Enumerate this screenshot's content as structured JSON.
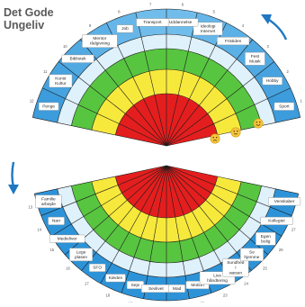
{
  "title": {
    "line1": "Det Gode",
    "line2": "Ungeliv"
  },
  "colors": {
    "ring_red": "#e41e1e",
    "ring_yellow": "#f7e93c",
    "ring_green": "#58c540",
    "ring_light_blue": "#dff1fb",
    "band_blue": "#2d93d8",
    "band_light": "#8ed0f4",
    "arrow": "#1f78c1",
    "label_box": "#ffffff",
    "text_dark": "#2a2a2a"
  },
  "upper_wheel": {
    "segments": [
      {
        "label": "Penge",
        "number": "12"
      },
      {
        "label": "Kunst Kultur",
        "number": "11"
      },
      {
        "label": "Bibliotek",
        "number": "10"
      },
      {
        "label": "Mentor rådgivning",
        "number": "9"
      },
      {
        "label": "Job",
        "number": "8"
      },
      {
        "label": "Transport",
        "number": "7"
      },
      {
        "label": "Uddannelse",
        "number": "6"
      },
      {
        "label": "Ideologi Internet",
        "number": "5"
      },
      {
        "label": "Fristiden",
        "number": "4"
      },
      {
        "label": "Fest Musik",
        "number": "3"
      },
      {
        "label": "Hobby",
        "number": "2"
      },
      {
        "label": "Sport",
        "number": "1"
      }
    ],
    "smileys": [
      "worried-face-icon",
      "neutral-face-icon",
      "smiling-face-icon"
    ]
  },
  "lower_wheel": {
    "segments": [
      {
        "label": "Venskaber",
        "number": ""
      },
      {
        "label": "Kollegiet",
        "number": "27"
      },
      {
        "label": "Egen bolig",
        "number": "26"
      },
      {
        "label": "Se hjemme",
        "number": "25"
      },
      {
        "label": "Sundhed i væsen",
        "number": "24"
      },
      {
        "label": "Livs håndtering",
        "number": "23"
      },
      {
        "label": "Motion",
        "number": "22"
      },
      {
        "label": "Mad",
        "number": "21"
      },
      {
        "label": "Sexlivet",
        "number": "20"
      },
      {
        "label": "Seje",
        "number": "19"
      },
      {
        "label": "Kæden",
        "number": "18"
      },
      {
        "label": "SFO",
        "number": "17"
      },
      {
        "label": "Lege plasen",
        "number": "16"
      },
      {
        "label": "Medieliver",
        "number": "15"
      },
      {
        "label": "Nær",
        "number": "14"
      },
      {
        "label": "Familie arbejde",
        "number": "13"
      }
    ]
  }
}
